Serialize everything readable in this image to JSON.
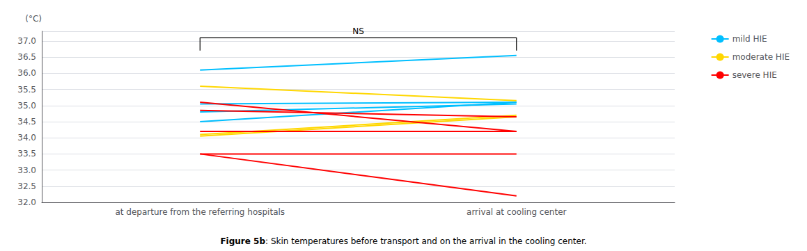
{
  "chart_data": {
    "type": "line",
    "categories": [
      "at departure from the referring hospitals",
      "arrival at cooling center"
    ],
    "series": [
      {
        "name": "mild HIE",
        "color": "#00BFFF",
        "values": [
          [
            36.1,
            36.55
          ],
          [
            35.05,
            35.1
          ],
          [
            34.8,
            35.05
          ],
          [
            34.5,
            35.1
          ]
        ]
      },
      {
        "name": "moderate HIE",
        "color": "#FFD700",
        "values": [
          [
            35.6,
            35.15
          ],
          [
            34.1,
            34.7
          ],
          [
            34.05,
            34.65
          ]
        ]
      },
      {
        "name": "severe HIE",
        "color": "#FF0000",
        "values": [
          [
            35.1,
            34.2
          ],
          [
            34.85,
            34.65
          ],
          [
            34.2,
            34.2
          ],
          [
            33.5,
            33.5
          ],
          [
            33.5,
            32.2
          ]
        ]
      }
    ],
    "y_label": "(°C)",
    "ylim": [
      32.0,
      37.3
    ],
    "yticks": [
      {
        "value": 32,
        "label": "32.0"
      },
      32.5,
      {
        "value": 33,
        "label": "33.0"
      },
      33.5,
      {
        "value": 34,
        "label": "34.0"
      },
      34.5,
      {
        "value": 35,
        "label": "35.0"
      },
      35.5,
      {
        "value": 36,
        "label": "36.0"
      },
      36.5,
      {
        "value": 37,
        "label": "37.0"
      }
    ],
    "grid": true,
    "legend": "right",
    "annotations": [
      {
        "text": "NS",
        "bracket": [
          36.7,
          37.1
        ]
      }
    ],
    "caption_bold": "Figure 5b",
    "caption": ": Skin temperatures before transport and on the arrival in the cooling center."
  }
}
